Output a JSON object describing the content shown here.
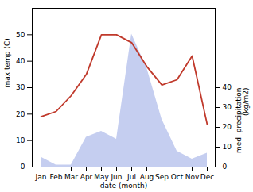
{
  "chart_data": {
    "type": "line",
    "categories": [
      "Jan",
      "Feb",
      "Mar",
      "Apr",
      "May",
      "Jun",
      "Jul",
      "Aug",
      "Sep",
      "Oct",
      "Nov",
      "Dec"
    ],
    "xlabel": "date (month)",
    "ylabel": "max temp (C)",
    "y2label": "med. precipitation\n(kg/m2)",
    "ylim": [
      0,
      60
    ],
    "yticks": [
      0,
      10,
      20,
      30,
      40,
      50
    ],
    "y2lim": [
      0,
      80
    ],
    "y2ticks": [
      0,
      10,
      20,
      30,
      40
    ],
    "series": [
      {
        "type": "area",
        "axis": "y2",
        "color": "#c5cef0",
        "values": [
          5,
          1,
          1,
          15,
          18,
          14,
          67,
          50,
          24,
          8,
          4,
          7
        ]
      },
      {
        "type": "line",
        "color": "#c0392b",
        "values": [
          19,
          21,
          27,
          35,
          50,
          50,
          47,
          38,
          31,
          33,
          42,
          16
        ]
      }
    ]
  }
}
